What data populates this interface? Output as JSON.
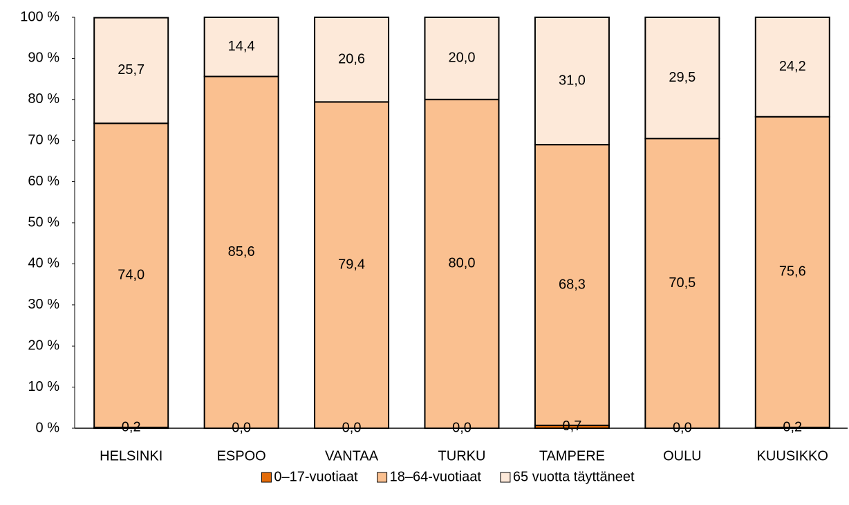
{
  "chart_data": {
    "type": "stacked_bar",
    "categories": [
      "HELSINKI",
      "ESPOO",
      "VANTAA",
      "TURKU",
      "TAMPERE",
      "OULU",
      "KUUSIKKO"
    ],
    "series": [
      {
        "name": "0–17-vuotiaat",
        "color": "#e46c0a",
        "values": [
          0.2,
          0.0,
          0.0,
          0.0,
          0.7,
          0.0,
          0.2
        ],
        "value_labels": [
          "0,2",
          "0,0",
          "0,0",
          "0,0",
          "0,7",
          "0,0",
          "0,2"
        ]
      },
      {
        "name": "18–64-vuotiaat",
        "color": "#fac090",
        "values": [
          74.0,
          85.6,
          79.4,
          80.0,
          68.3,
          70.5,
          75.6
        ],
        "value_labels": [
          "74,0",
          "85,6",
          "79,4",
          "80,0",
          "68,3",
          "70,5",
          "75,6"
        ]
      },
      {
        "name": "65 vuotta täyttäneet",
        "color": "#fde9d9",
        "values": [
          25.7,
          14.4,
          20.6,
          20.0,
          31.0,
          29.5,
          24.2
        ],
        "value_labels": [
          "25,7",
          "14,4",
          "20,6",
          "20,0",
          "31,0",
          "29,5",
          "24,2"
        ]
      }
    ],
    "ylim": [
      0,
      100
    ],
    "yticks": [
      {
        "value": 0,
        "label": "0 %"
      },
      {
        "value": 10,
        "label": "10 %"
      },
      {
        "value": 20,
        "label": "20 %"
      },
      {
        "value": 30,
        "label": "30 %"
      },
      {
        "value": 40,
        "label": "40 %"
      },
      {
        "value": 50,
        "label": "50 %"
      },
      {
        "value": 60,
        "label": "60 %"
      },
      {
        "value": 70,
        "label": "70 %"
      },
      {
        "value": 80,
        "label": "80 %"
      },
      {
        "value": 90,
        "label": "90 %"
      },
      {
        "value": 100,
        "label": "100 %"
      }
    ],
    "legend": "bottom"
  }
}
